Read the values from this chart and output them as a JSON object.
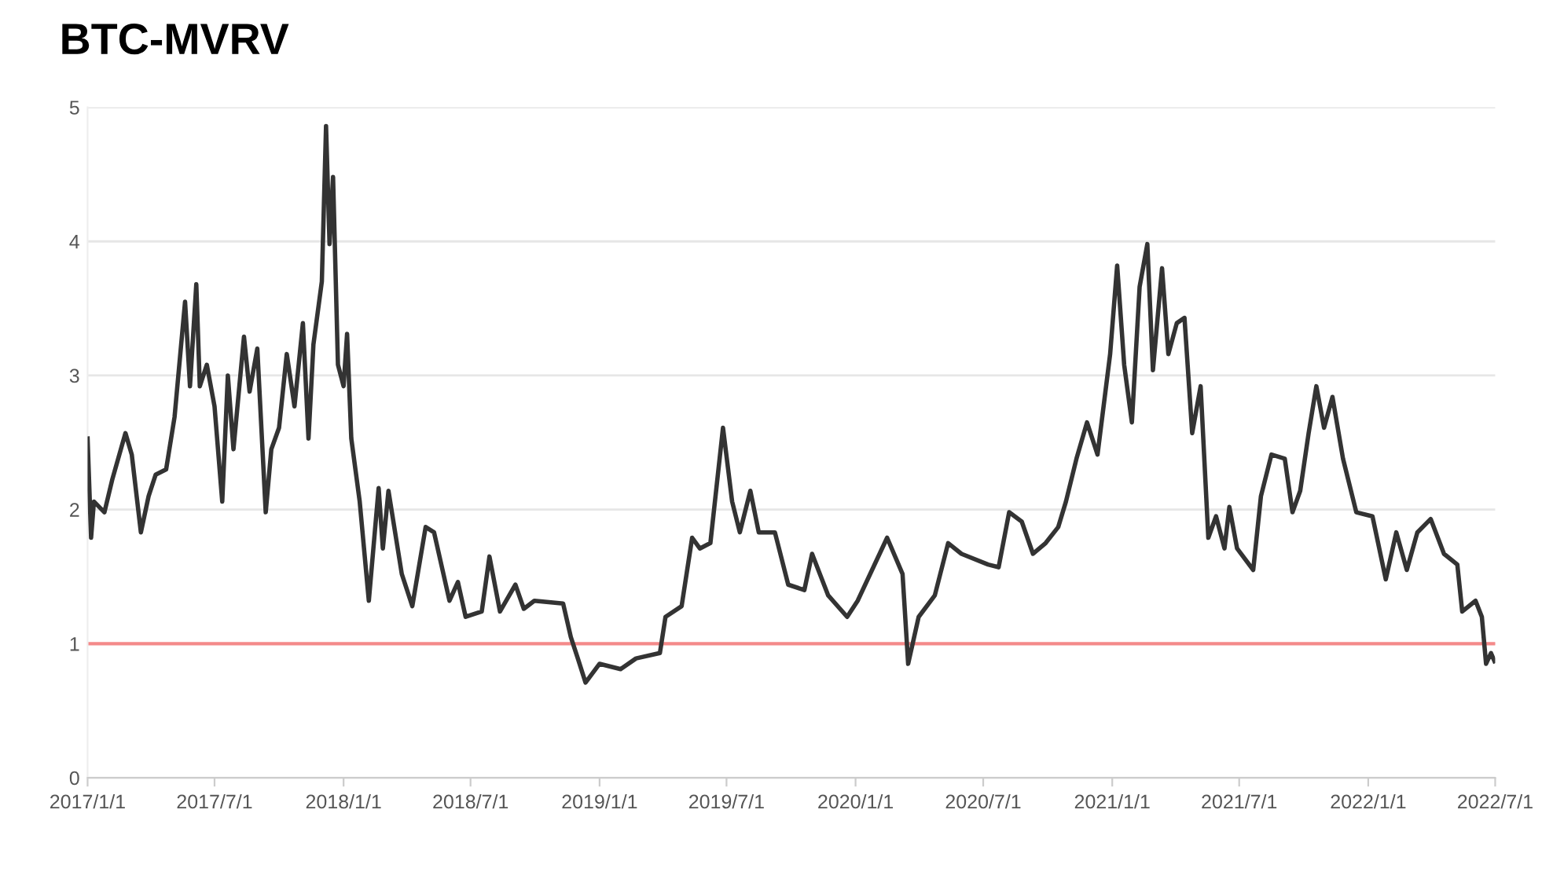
{
  "chart_data": {
    "type": "line",
    "title": "BTC-MVRV",
    "xlim": [
      "2017-01-01",
      "2022-07-01"
    ],
    "xticks": [
      {
        "value": "2017-01-01",
        "label": "2017/1/1"
      },
      {
        "value": "2017-07-01",
        "label": "2017/7/1"
      },
      {
        "value": "2018-01-01",
        "label": "2018/1/1"
      },
      {
        "value": "2018-07-01",
        "label": "2018/7/1"
      },
      {
        "value": "2019-01-01",
        "label": "2019/1/1"
      },
      {
        "value": "2019-07-01",
        "label": "2019/7/1"
      },
      {
        "value": "2020-01-01",
        "label": "2020/1/1"
      },
      {
        "value": "2020-07-01",
        "label": "2020/7/1"
      },
      {
        "value": "2021-01-01",
        "label": "2021/1/1"
      },
      {
        "value": "2021-07-01",
        "label": "2021/7/1"
      },
      {
        "value": "2022-01-01",
        "label": "2022/1/1"
      },
      {
        "value": "2022-07-01",
        "label": "2022/7/1"
      }
    ],
    "ylim": [
      0,
      5
    ],
    "yticks": [
      0,
      1,
      2,
      3,
      4,
      5
    ],
    "grid": "y",
    "legend": false,
    "marker": "none",
    "line_style": "solid",
    "ref_lines": [
      {
        "axis": "y",
        "value": 1,
        "color": "#f48a8a",
        "line_style": "solid"
      }
    ],
    "series": [
      {
        "color": "#333333",
        "x": [
          "2017-01-01",
          "2017-01-06",
          "2017-01-10",
          "2017-01-25",
          "2017-02-05",
          "2017-02-24",
          "2017-03-05",
          "2017-03-18",
          "2017-03-29",
          "2017-04-08",
          "2017-04-23",
          "2017-05-05",
          "2017-05-20",
          "2017-05-27",
          "2017-06-05",
          "2017-06-10",
          "2017-06-20",
          "2017-07-01",
          "2017-07-12",
          "2017-07-20",
          "2017-07-28",
          "2017-08-12",
          "2017-08-20",
          "2017-08-31",
          "2017-09-12",
          "2017-09-20",
          "2017-10-01",
          "2017-10-12",
          "2017-10-23",
          "2017-11-04",
          "2017-11-12",
          "2017-11-19",
          "2017-12-01",
          "2017-12-07",
          "2017-12-12",
          "2017-12-17",
          "2017-12-24",
          "2018-01-01",
          "2018-01-06",
          "2018-01-12",
          "2018-01-24",
          "2018-02-06",
          "2018-02-20",
          "2018-02-26",
          "2018-03-06",
          "2018-03-25",
          "2018-04-09",
          "2018-04-28",
          "2018-05-10",
          "2018-06-01",
          "2018-06-13",
          "2018-06-24",
          "2018-07-17",
          "2018-07-28",
          "2018-08-12",
          "2018-09-03",
          "2018-09-15",
          "2018-09-30",
          "2018-11-10",
          "2018-11-21",
          "2018-12-01",
          "2018-12-12",
          "2019-01-01",
          "2019-01-31",
          "2019-02-22",
          "2019-03-28",
          "2019-04-05",
          "2019-04-28",
          "2019-05-13",
          "2019-05-24",
          "2019-06-08",
          "2019-06-26",
          "2019-07-09",
          "2019-07-20",
          "2019-08-04",
          "2019-08-16",
          "2019-09-08",
          "2019-09-27",
          "2019-10-20",
          "2019-10-31",
          "2019-11-23",
          "2019-12-20",
          "2020-01-04",
          "2020-02-15",
          "2020-03-08",
          "2020-03-16",
          "2020-03-31",
          "2020-04-23",
          "2020-05-12",
          "2020-05-31",
          "2020-07-08",
          "2020-07-23",
          "2020-08-07",
          "2020-08-25",
          "2020-09-10",
          "2020-09-28",
          "2020-10-16",
          "2020-10-27",
          "2020-11-11",
          "2020-11-26",
          "2020-12-11",
          "2020-12-29",
          "2021-01-08",
          "2021-01-18",
          "2021-01-29",
          "2021-02-09",
          "2021-02-20",
          "2021-02-28",
          "2021-03-13",
          "2021-03-22",
          "2021-04-03",
          "2021-04-14",
          "2021-04-25",
          "2021-05-07",
          "2021-05-18",
          "2021-05-29",
          "2021-06-10",
          "2021-06-17",
          "2021-06-28",
          "2021-07-21",
          "2021-08-01",
          "2021-08-16",
          "2021-09-04",
          "2021-09-15",
          "2021-09-26",
          "2021-10-08",
          "2021-10-19",
          "2021-10-30",
          "2021-11-11",
          "2021-11-26",
          "2021-12-15",
          "2022-01-07",
          "2022-01-26",
          "2022-02-10",
          "2022-02-25",
          "2022-03-12",
          "2022-03-31",
          "2022-04-19",
          "2022-05-08",
          "2022-05-15",
          "2022-06-03",
          "2022-06-12",
          "2022-06-18",
          "2022-06-25",
          "2022-06-30"
        ],
        "values": [
          2.53,
          1.79,
          2.06,
          1.98,
          2.22,
          2.57,
          2.41,
          1.83,
          2.1,
          2.26,
          2.3,
          2.69,
          3.55,
          2.92,
          3.68,
          2.92,
          3.08,
          2.77,
          2.06,
          3.0,
          2.45,
          3.29,
          2.88,
          3.2,
          1.98,
          2.45,
          2.61,
          3.16,
          2.77,
          3.39,
          2.53,
          3.23,
          3.7,
          4.86,
          3.98,
          4.48,
          3.08,
          2.92,
          3.31,
          2.53,
          2.06,
          1.32,
          2.16,
          1.71,
          2.14,
          1.52,
          1.28,
          1.87,
          1.83,
          1.32,
          1.46,
          1.2,
          1.24,
          1.65,
          1.24,
          1.44,
          1.26,
          1.32,
          1.3,
          1.05,
          0.89,
          0.71,
          0.85,
          0.81,
          0.89,
          0.93,
          1.2,
          1.28,
          1.79,
          1.71,
          1.75,
          2.61,
          2.06,
          1.83,
          2.14,
          1.83,
          1.83,
          1.44,
          1.4,
          1.67,
          1.36,
          1.2,
          1.32,
          1.79,
          1.52,
          0.85,
          1.2,
          1.36,
          1.75,
          1.67,
          1.59,
          1.57,
          1.98,
          1.91,
          1.67,
          1.75,
          1.87,
          2.06,
          2.38,
          2.65,
          2.41,
          3.16,
          3.82,
          3.08,
          2.65,
          3.66,
          3.98,
          3.04,
          3.8,
          3.16,
          3.39,
          3.43,
          2.57,
          2.92,
          1.79,
          1.95,
          1.71,
          2.02,
          1.71,
          1.55,
          2.1,
          2.41,
          2.38,
          1.98,
          2.14,
          2.57,
          2.92,
          2.61,
          2.84,
          2.38,
          1.98,
          1.95,
          1.48,
          1.83,
          1.55,
          1.83,
          1.93,
          1.67,
          1.59,
          1.24,
          1.32,
          1.2,
          0.85,
          0.93,
          0.87
        ]
      }
    ]
  }
}
